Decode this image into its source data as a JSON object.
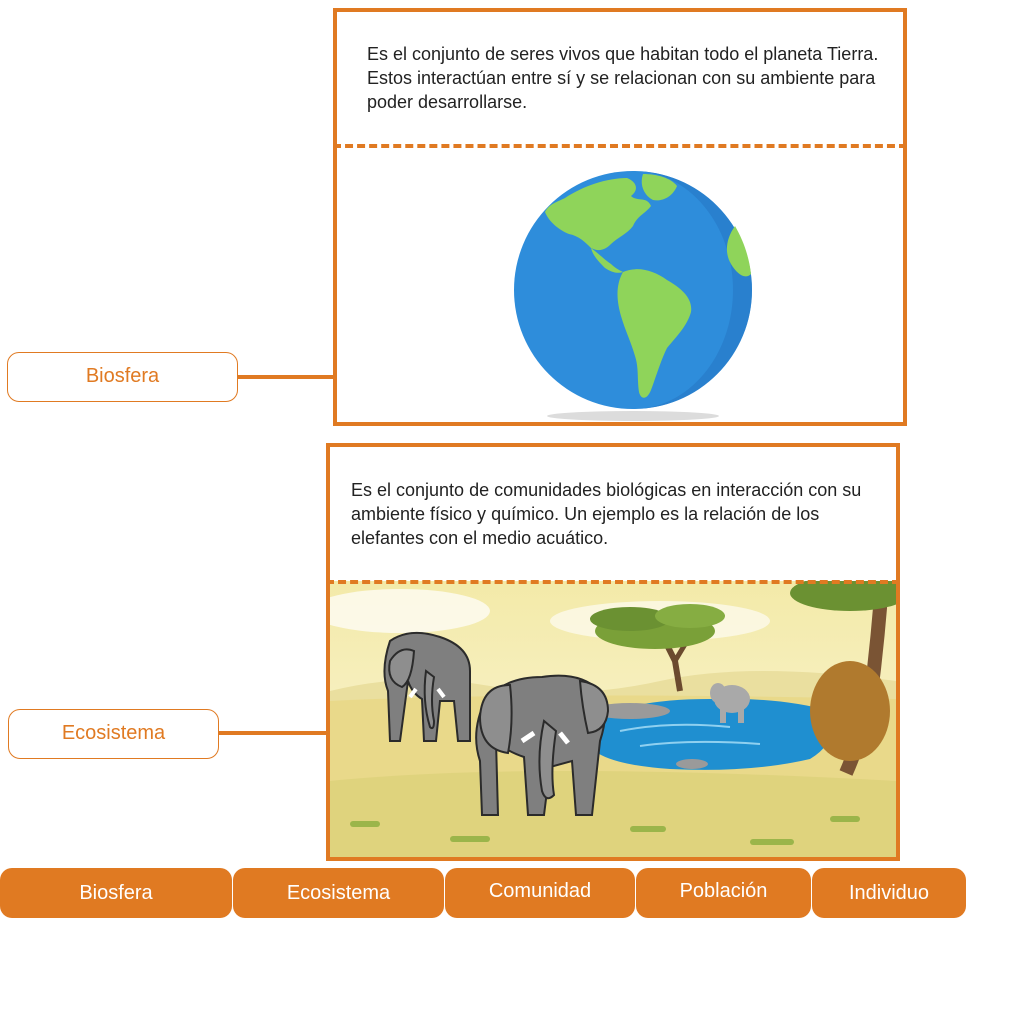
{
  "cards": {
    "biosfera": {
      "description": "Es el conjunto de seres vivos que habitan todo el planeta Tierra. Estos interactúan entre sí y se relacionan con su ambiente para poder desarrollarse.",
      "image": "earth-globe-illustration"
    },
    "ecosistema": {
      "description": "Es el conjunto de comunidades biológicas en interacción con su ambiente físico y químico. Un ejemplo es la relación de los elefantes con el medio acuático.",
      "image": "elephants-savanna-waterhole-illustration"
    }
  },
  "labels": {
    "biosfera": "Biosfera",
    "ecosistema": "Ecosistema"
  },
  "tabs": [
    {
      "label": "Biosfera"
    },
    {
      "label": "Ecosistema"
    },
    {
      "label": "Comunidad"
    },
    {
      "label": "Población"
    },
    {
      "label": "Individuo"
    }
  ],
  "colors": {
    "accent": "#e07a22",
    "ocean": "#2e8ddb",
    "land": "#8fd45a",
    "water": "#1f8fd0",
    "grass": "#e9d98a"
  }
}
